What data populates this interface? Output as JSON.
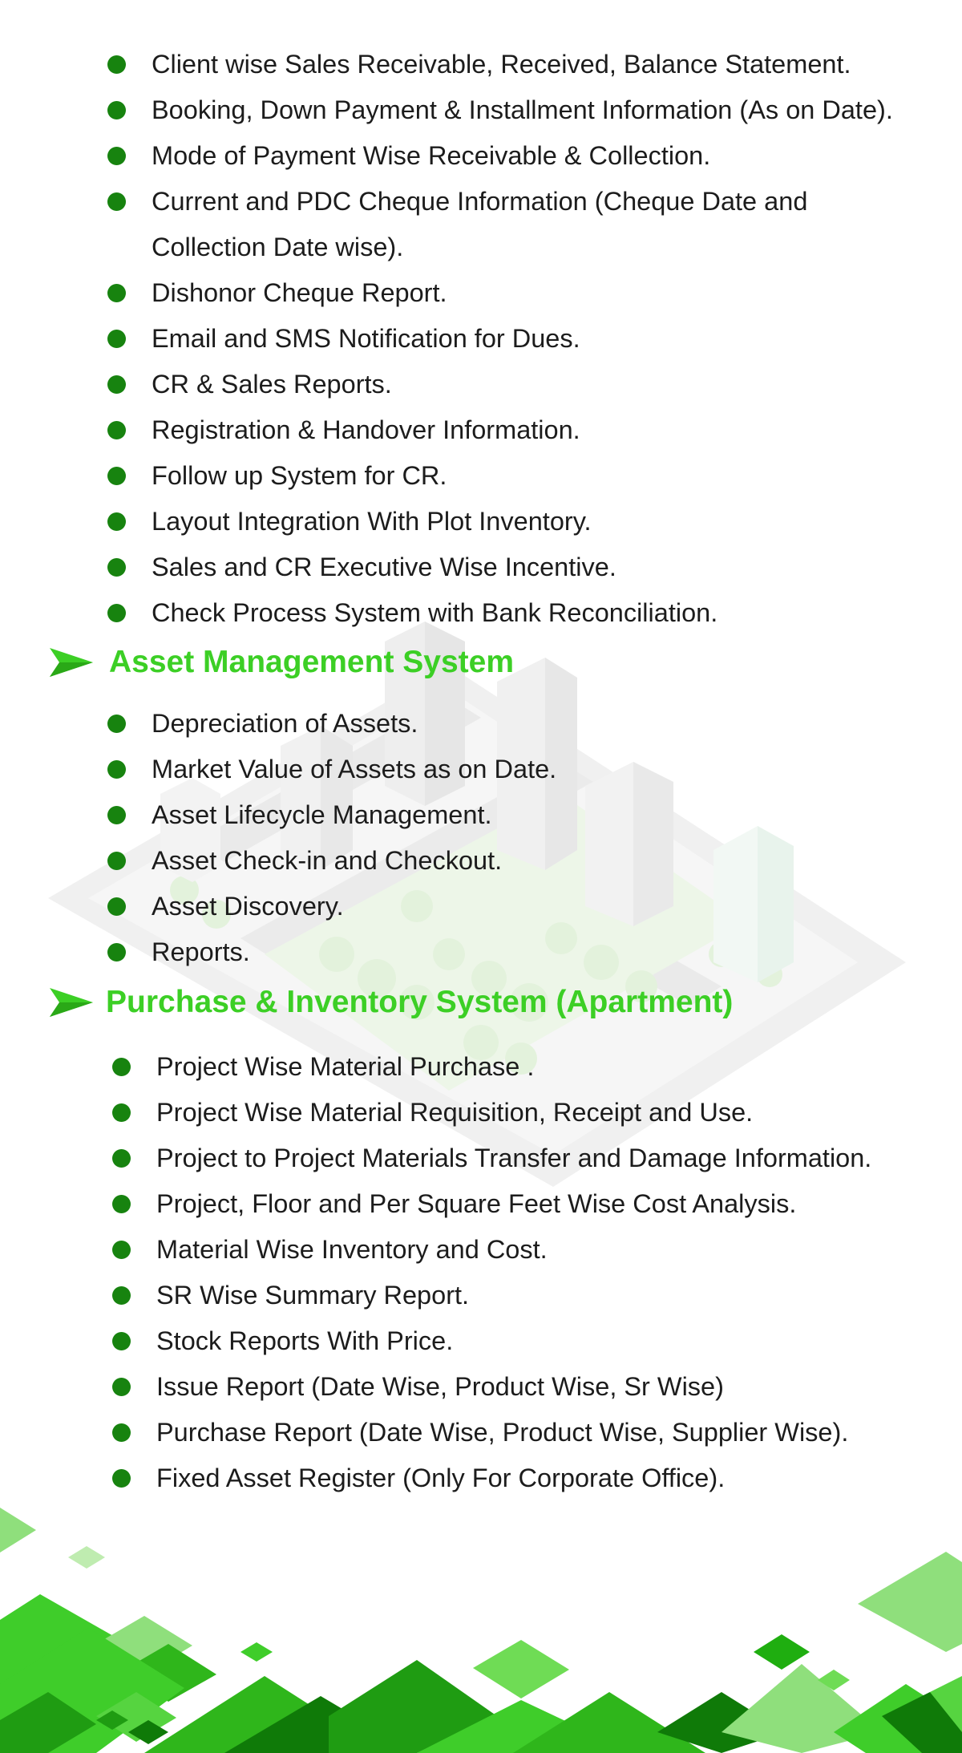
{
  "sales_features": [
    "Client wise Sales Receivable, Received, Balance Statement.",
    "Booking, Down Payment & Installment Information (As on Date).",
    "Mode of Payment Wise Receivable & Collection.",
    "Current and PDC Cheque Information (Cheque Date and Collection Date wise).",
    "Dishonor Cheque Report.",
    "Email and SMS Notification for Dues.",
    "CR & Sales Reports.",
    "Registration & Handover Information.",
    "Follow up System for CR.",
    "Layout Integration With Plot Inventory.",
    "Sales and CR Executive Wise Incentive.",
    "Check Process System with Bank Reconciliation."
  ],
  "asset_section": {
    "title": "Asset Management System",
    "items": [
      "Depreciation of Assets.",
      "Market Value of Assets as on Date.",
      "Asset Lifecycle Management.",
      "Asset Check-in and Checkout.",
      "Asset Discovery.",
      "Reports."
    ]
  },
  "purchase_section": {
    "title": "Purchase & Inventory System (Apartment)",
    "items": [
      "Project Wise Material Purchase .",
      "Project Wise Material Requisition, Receipt and Use.",
      "Project to Project Materials Transfer and Damage Information.",
      "Project, Floor and Per Square Feet Wise Cost Analysis.",
      "Material Wise Inventory and Cost.",
      "SR Wise Summary Report.",
      "Stock Reports With Price.",
      "Issue Report (Date Wise, Product Wise, Sr Wise)",
      "Purchase Report (Date Wise, Product Wise, Supplier Wise).",
      "Fixed Asset Register (Only For Corporate Office)."
    ]
  },
  "colors": {
    "heading_green": "#3ccf25",
    "bullet_green": "#17830f",
    "text": "#1c1c1c"
  },
  "icons": {
    "section_marker": "paper-plane-arrow-icon",
    "bullet": "filled-circle-bullet"
  }
}
